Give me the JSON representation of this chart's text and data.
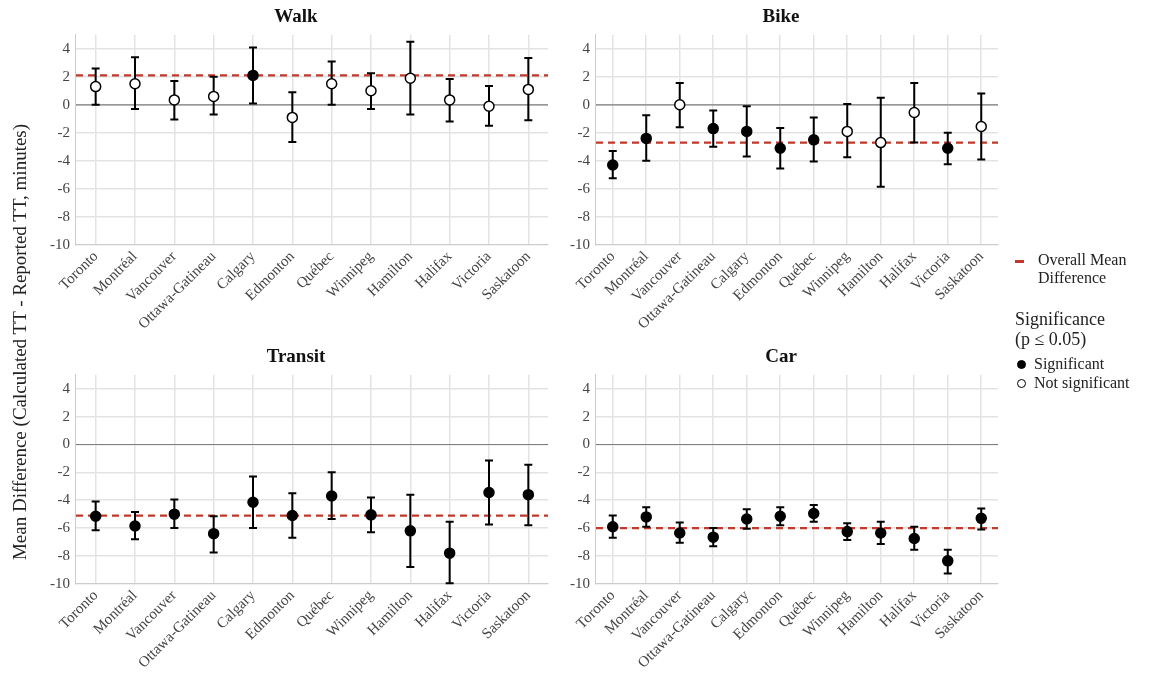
{
  "chart_data": [
    {
      "type": "scatter",
      "title": "Walk",
      "ylabel": "Mean Difference (Calculated TT - Reported TT, minutes)",
      "categories": [
        "Toronto",
        "Montréal",
        "Vancouver",
        "Ottawa-Gatineau",
        "Calgary",
        "Edmonton",
        "Québec",
        "Winnipeg",
        "Hamilton",
        "Halifax",
        "Victoria",
        "Saskatoon"
      ],
      "ylim": [
        -10,
        5
      ],
      "yticks": [
        -10,
        -8,
        -6,
        -4,
        -2,
        0,
        2,
        4
      ],
      "grid": true,
      "marker": "circle",
      "series": [
        {
          "color": "#000000",
          "values": [
            null,
            null,
            null,
            null,
            2.1,
            null,
            null,
            null,
            null,
            null,
            null,
            null
          ],
          "errors": [
            null,
            null,
            null,
            null,
            [
              0.1,
              4.1
            ],
            null,
            null,
            null,
            null,
            null,
            null,
            null
          ]
        },
        {
          "color": "#ffffff",
          "values": [
            1.3,
            1.5,
            0.35,
            0.6,
            null,
            -0.9,
            1.5,
            1.0,
            1.9,
            0.35,
            -0.1,
            1.1
          ],
          "errors": [
            [
              0,
              2.6
            ],
            [
              -0.3,
              3.4
            ],
            [
              -1.05,
              1.7
            ],
            [
              -0.7,
              2.0
            ],
            null,
            [
              -2.65,
              0.9
            ],
            [
              0,
              3.1
            ],
            [
              -0.3,
              2.25
            ],
            [
              -0.7,
              4.5
            ],
            [
              -1.2,
              1.85
            ],
            [
              -1.5,
              1.35
            ],
            [
              -1.1,
              3.35
            ]
          ]
        }
      ],
      "ref_lines": [
        {
          "axis": "y",
          "value": 0,
          "color": "#7f7f7f",
          "line_style": "solid"
        },
        {
          "axis": "y",
          "value": 2.1,
          "color": "#c0392b",
          "line_style": "dashed"
        }
      ]
    },
    {
      "type": "scatter",
      "title": "Bike",
      "categories": [
        "Toronto",
        "Montréal",
        "Vancouver",
        "Ottawa-Gatineau",
        "Calgary",
        "Edmonton",
        "Québec",
        "Winnipeg",
        "Hamilton",
        "Halifax",
        "Victoria",
        "Saskatoon"
      ],
      "ylim": [
        -10,
        5
      ],
      "yticks": [
        -10,
        -8,
        -6,
        -4,
        -2,
        0,
        2,
        4
      ],
      "grid": true,
      "marker": "circle",
      "legend": "right",
      "legend_title": "Significance\n(p ≤ 0.05)",
      "series": [
        {
          "name": "Significant",
          "color": "#000000",
          "values": [
            -4.3,
            -2.4,
            null,
            -1.7,
            -1.9,
            -3.1,
            -2.5,
            null,
            null,
            null,
            -3.1,
            null
          ],
          "errors": [
            [
              -5.25,
              -3.3
            ],
            [
              -4.0,
              -0.75
            ],
            null,
            [
              -3.0,
              -0.4
            ],
            [
              -3.7,
              -0.1
            ],
            [
              -4.55,
              -1.65
            ],
            [
              -4.05,
              -0.9
            ],
            null,
            null,
            null,
            [
              -4.25,
              -2.0
            ],
            null
          ]
        },
        {
          "name": "Not significant",
          "color": "#ffffff",
          "values": [
            null,
            null,
            0,
            null,
            null,
            null,
            null,
            -1.9,
            -2.7,
            -0.55,
            null,
            -1.55
          ],
          "errors": [
            null,
            null,
            [
              -1.6,
              1.55
            ],
            null,
            null,
            null,
            null,
            [
              -3.75,
              0.05
            ],
            [
              -5.85,
              0.5
            ],
            [
              -2.7,
              1.55
            ],
            null,
            [
              -3.9,
              0.8
            ]
          ]
        }
      ],
      "ref_lines": [
        {
          "axis": "y",
          "value": 0,
          "color": "#7f7f7f",
          "line_style": "solid"
        },
        {
          "axis": "y",
          "value": -2.7,
          "color": "#c0392b",
          "line_style": "dashed",
          "label": "Overall Mean Difference"
        }
      ]
    },
    {
      "type": "scatter",
      "title": "Transit",
      "categories": [
        "Toronto",
        "Montréal",
        "Vancouver",
        "Ottawa-Gatineau",
        "Calgary",
        "Edmonton",
        "Québec",
        "Winnipeg",
        "Hamilton",
        "Halifax",
        "Victoria",
        "Saskatoon"
      ],
      "ylim": [
        -10,
        5
      ],
      "yticks": [
        -10,
        -8,
        -6,
        -4,
        -2,
        0,
        2,
        4
      ],
      "grid": true,
      "marker": "circle",
      "series": [
        {
          "color": "#000000",
          "values": [
            -5.15,
            -5.85,
            -5.0,
            -6.4,
            -4.15,
            -5.1,
            -3.7,
            -5.05,
            -6.2,
            -7.8,
            -3.45,
            -3.6
          ],
          "errors": [
            [
              -6.15,
              -4.1
            ],
            [
              -6.8,
              -4.85
            ],
            [
              -6.0,
              -3.95
            ],
            [
              -7.75,
              -5.15
            ],
            [
              -6.0,
              -2.3
            ],
            [
              -6.7,
              -3.5
            ],
            [
              -5.35,
              -2.0
            ],
            [
              -6.3,
              -3.8
            ],
            [
              -8.8,
              -3.6
            ],
            [
              -9.95,
              -5.55
            ],
            [
              -5.75,
              -1.15
            ],
            [
              -5.8,
              -1.45
            ]
          ]
        }
      ],
      "ref_lines": [
        {
          "axis": "y",
          "value": 0,
          "color": "#7f7f7f",
          "line_style": "solid"
        },
        {
          "axis": "y",
          "value": -5.1,
          "color": "#c0392b",
          "line_style": "dashed"
        }
      ]
    },
    {
      "type": "scatter",
      "title": "Car",
      "categories": [
        "Toronto",
        "Montréal",
        "Vancouver",
        "Ottawa-Gatineau",
        "Calgary",
        "Edmonton",
        "Québec",
        "Winnipeg",
        "Hamilton",
        "Halifax",
        "Victoria",
        "Saskatoon"
      ],
      "ylim": [
        -10,
        5
      ],
      "yticks": [
        -10,
        -8,
        -6,
        -4,
        -2,
        0,
        2,
        4
      ],
      "grid": true,
      "marker": "circle",
      "series": [
        {
          "color": "#000000",
          "values": [
            -5.9,
            -5.2,
            -6.35,
            -6.65,
            -5.35,
            -5.15,
            -4.95,
            -6.25,
            -6.35,
            -6.75,
            -8.35,
            -5.3
          ],
          "errors": [
            [
              -6.7,
              -5.1
            ],
            [
              -5.9,
              -4.5
            ],
            [
              -7.05,
              -5.6
            ],
            [
              -7.3,
              -6.0
            ],
            [
              -6.05,
              -4.65
            ],
            [
              -5.8,
              -4.5
            ],
            [
              -5.55,
              -4.35
            ],
            [
              -6.85,
              -5.65
            ],
            [
              -7.15,
              -5.55
            ],
            [
              -7.55,
              -5.9
            ],
            [
              -9.25,
              -7.55
            ],
            [
              -6.1,
              -4.6
            ]
          ]
        }
      ],
      "ref_lines": [
        {
          "axis": "y",
          "value": 0,
          "color": "#7f7f7f",
          "line_style": "solid"
        },
        {
          "axis": "y",
          "value": -6.0,
          "color": "#c0392b",
          "line_style": "dashed"
        }
      ]
    }
  ]
}
